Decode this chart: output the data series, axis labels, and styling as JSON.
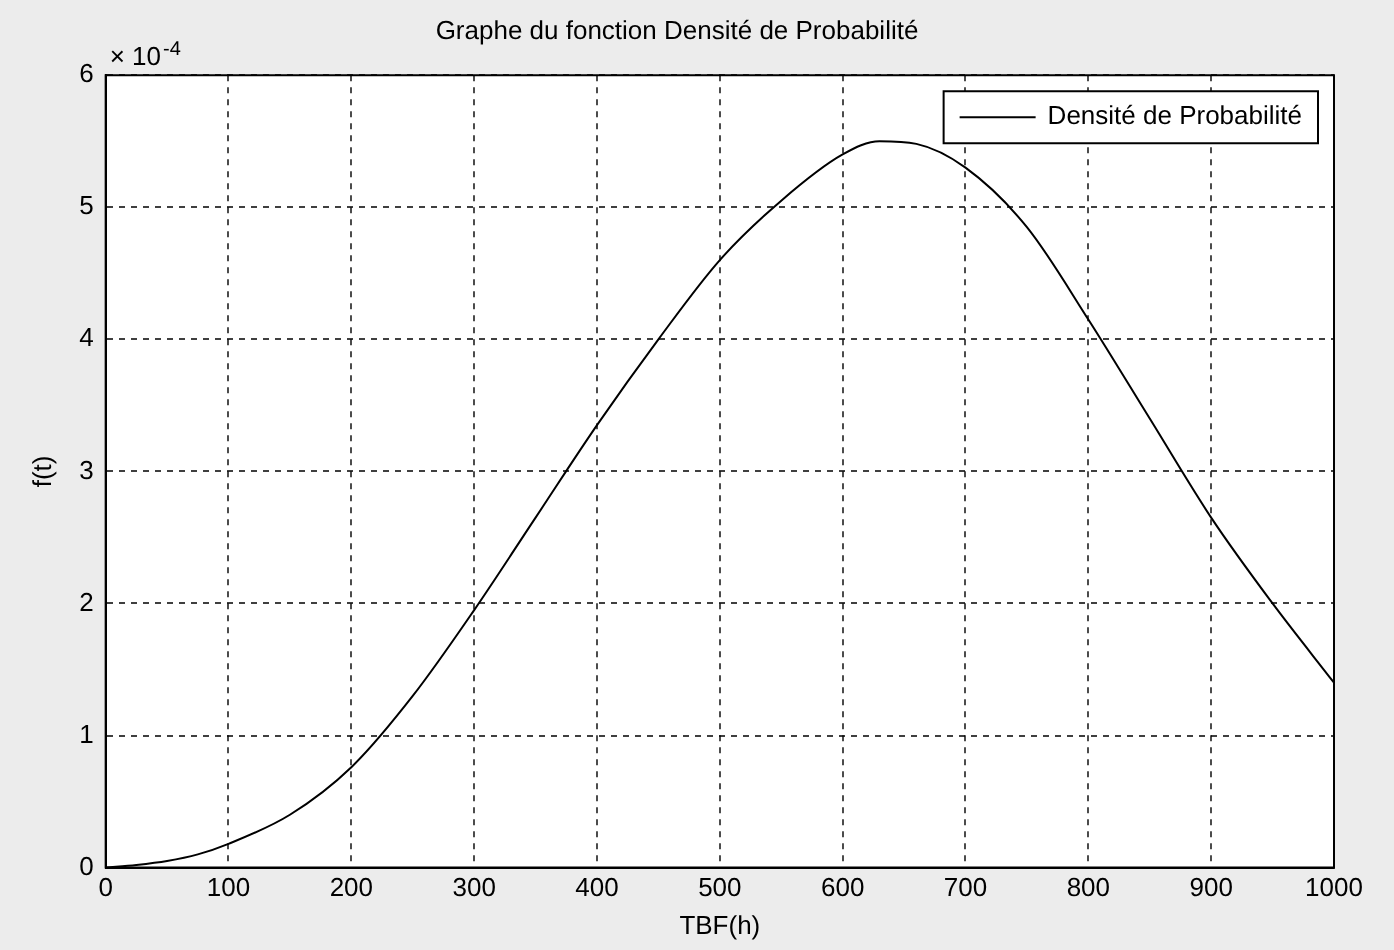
{
  "chart_data": {
    "type": "line",
    "title": "Graphe du fonction Densité de Probabilité",
    "xlabel": "TBF(h)",
    "ylabel": "f(t)",
    "annotations": [
      "× 10$^{-4}$"
    ],
    "x": [
      0,
      25,
      50,
      75,
      100,
      150,
      200,
      250,
      300,
      350,
      400,
      450,
      500,
      550,
      600,
      630,
      660,
      700,
      750,
      800,
      850,
      900,
      950,
      1000
    ],
    "series": [
      {
        "name": "Densité de Probabilité",
        "color": "#000000",
        "values": [
          0,
          0.02,
          0.05,
          0.1,
          0.18,
          0.4,
          0.76,
          1.3,
          1.95,
          2.65,
          3.35,
          4.0,
          4.6,
          5.05,
          5.4,
          5.5,
          5.48,
          5.3,
          4.85,
          4.15,
          3.4,
          2.65,
          2.0,
          1.4
        ]
      }
    ],
    "xlim": [
      0,
      1000
    ],
    "xticks": [
      0,
      100,
      200,
      300,
      400,
      500,
      600,
      700,
      800,
      900,
      1000
    ],
    "ylim": [
      0,
      6
    ],
    "yticks": [
      0,
      1,
      2,
      3,
      4,
      5,
      6
    ],
    "grid": true,
    "legend": "top right",
    "marker": "none",
    "line_style": "solid"
  }
}
